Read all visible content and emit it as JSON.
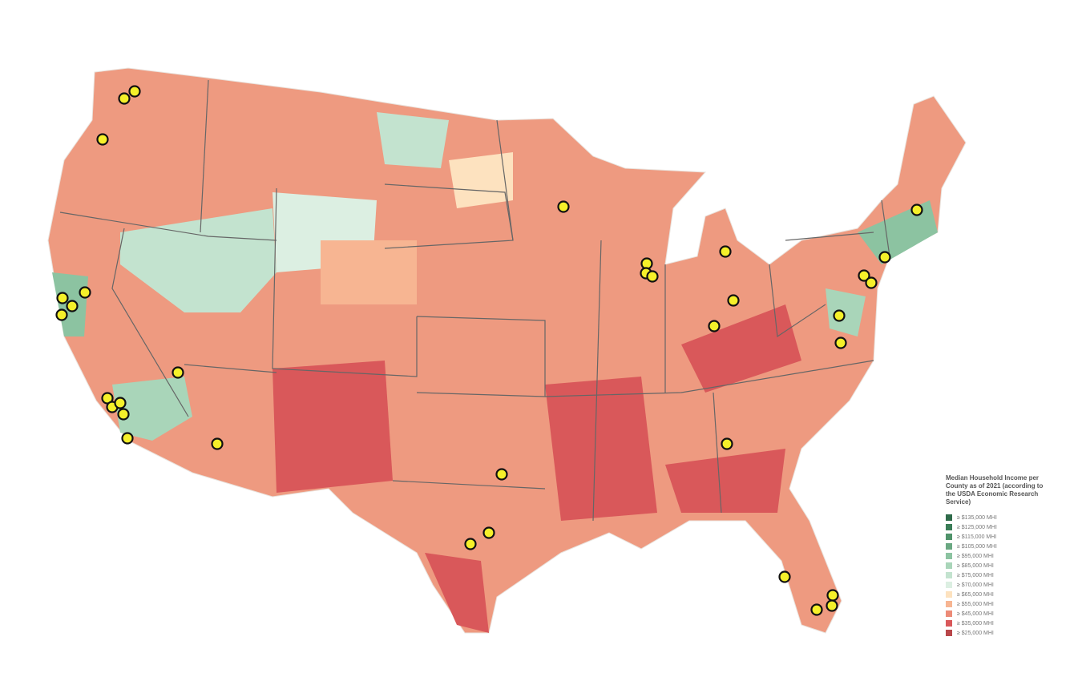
{
  "legend": {
    "title": "Median Household Income per County as of 2021 (according to the USDA Economic Research Service)",
    "items": [
      {
        "label": "≥ $135,000 MHI",
        "color": "#2f6b4a"
      },
      {
        "label": "≥ $125,000 MHI",
        "color": "#3a7d57"
      },
      {
        "label": "≥ $115,000 MHI",
        "color": "#4f936a"
      },
      {
        "label": "≥ $105,000 MHI",
        "color": "#6aa882"
      },
      {
        "label": "≥ $95,000 MHI",
        "color": "#8cc3a1"
      },
      {
        "label": "≥ $85,000 MHI",
        "color": "#a9d5b9"
      },
      {
        "label": "≥ $75,000 MHI",
        "color": "#c3e3cf"
      },
      {
        "label": "≥ $70,000 MHI",
        "color": "#dcefe2"
      },
      {
        "label": "≥ $65,000 MHI",
        "color": "#fde2bf"
      },
      {
        "label": "≥ $55,000 MHI",
        "color": "#f7b592"
      },
      {
        "label": "≥ $45,000 MHI",
        "color": "#ec8b77"
      },
      {
        "label": "≥ $35,000 MHI",
        "color": "#d9585a"
      },
      {
        "label": "≥ $25,000 MHI",
        "color": "#b9474a"
      }
    ]
  }
}
